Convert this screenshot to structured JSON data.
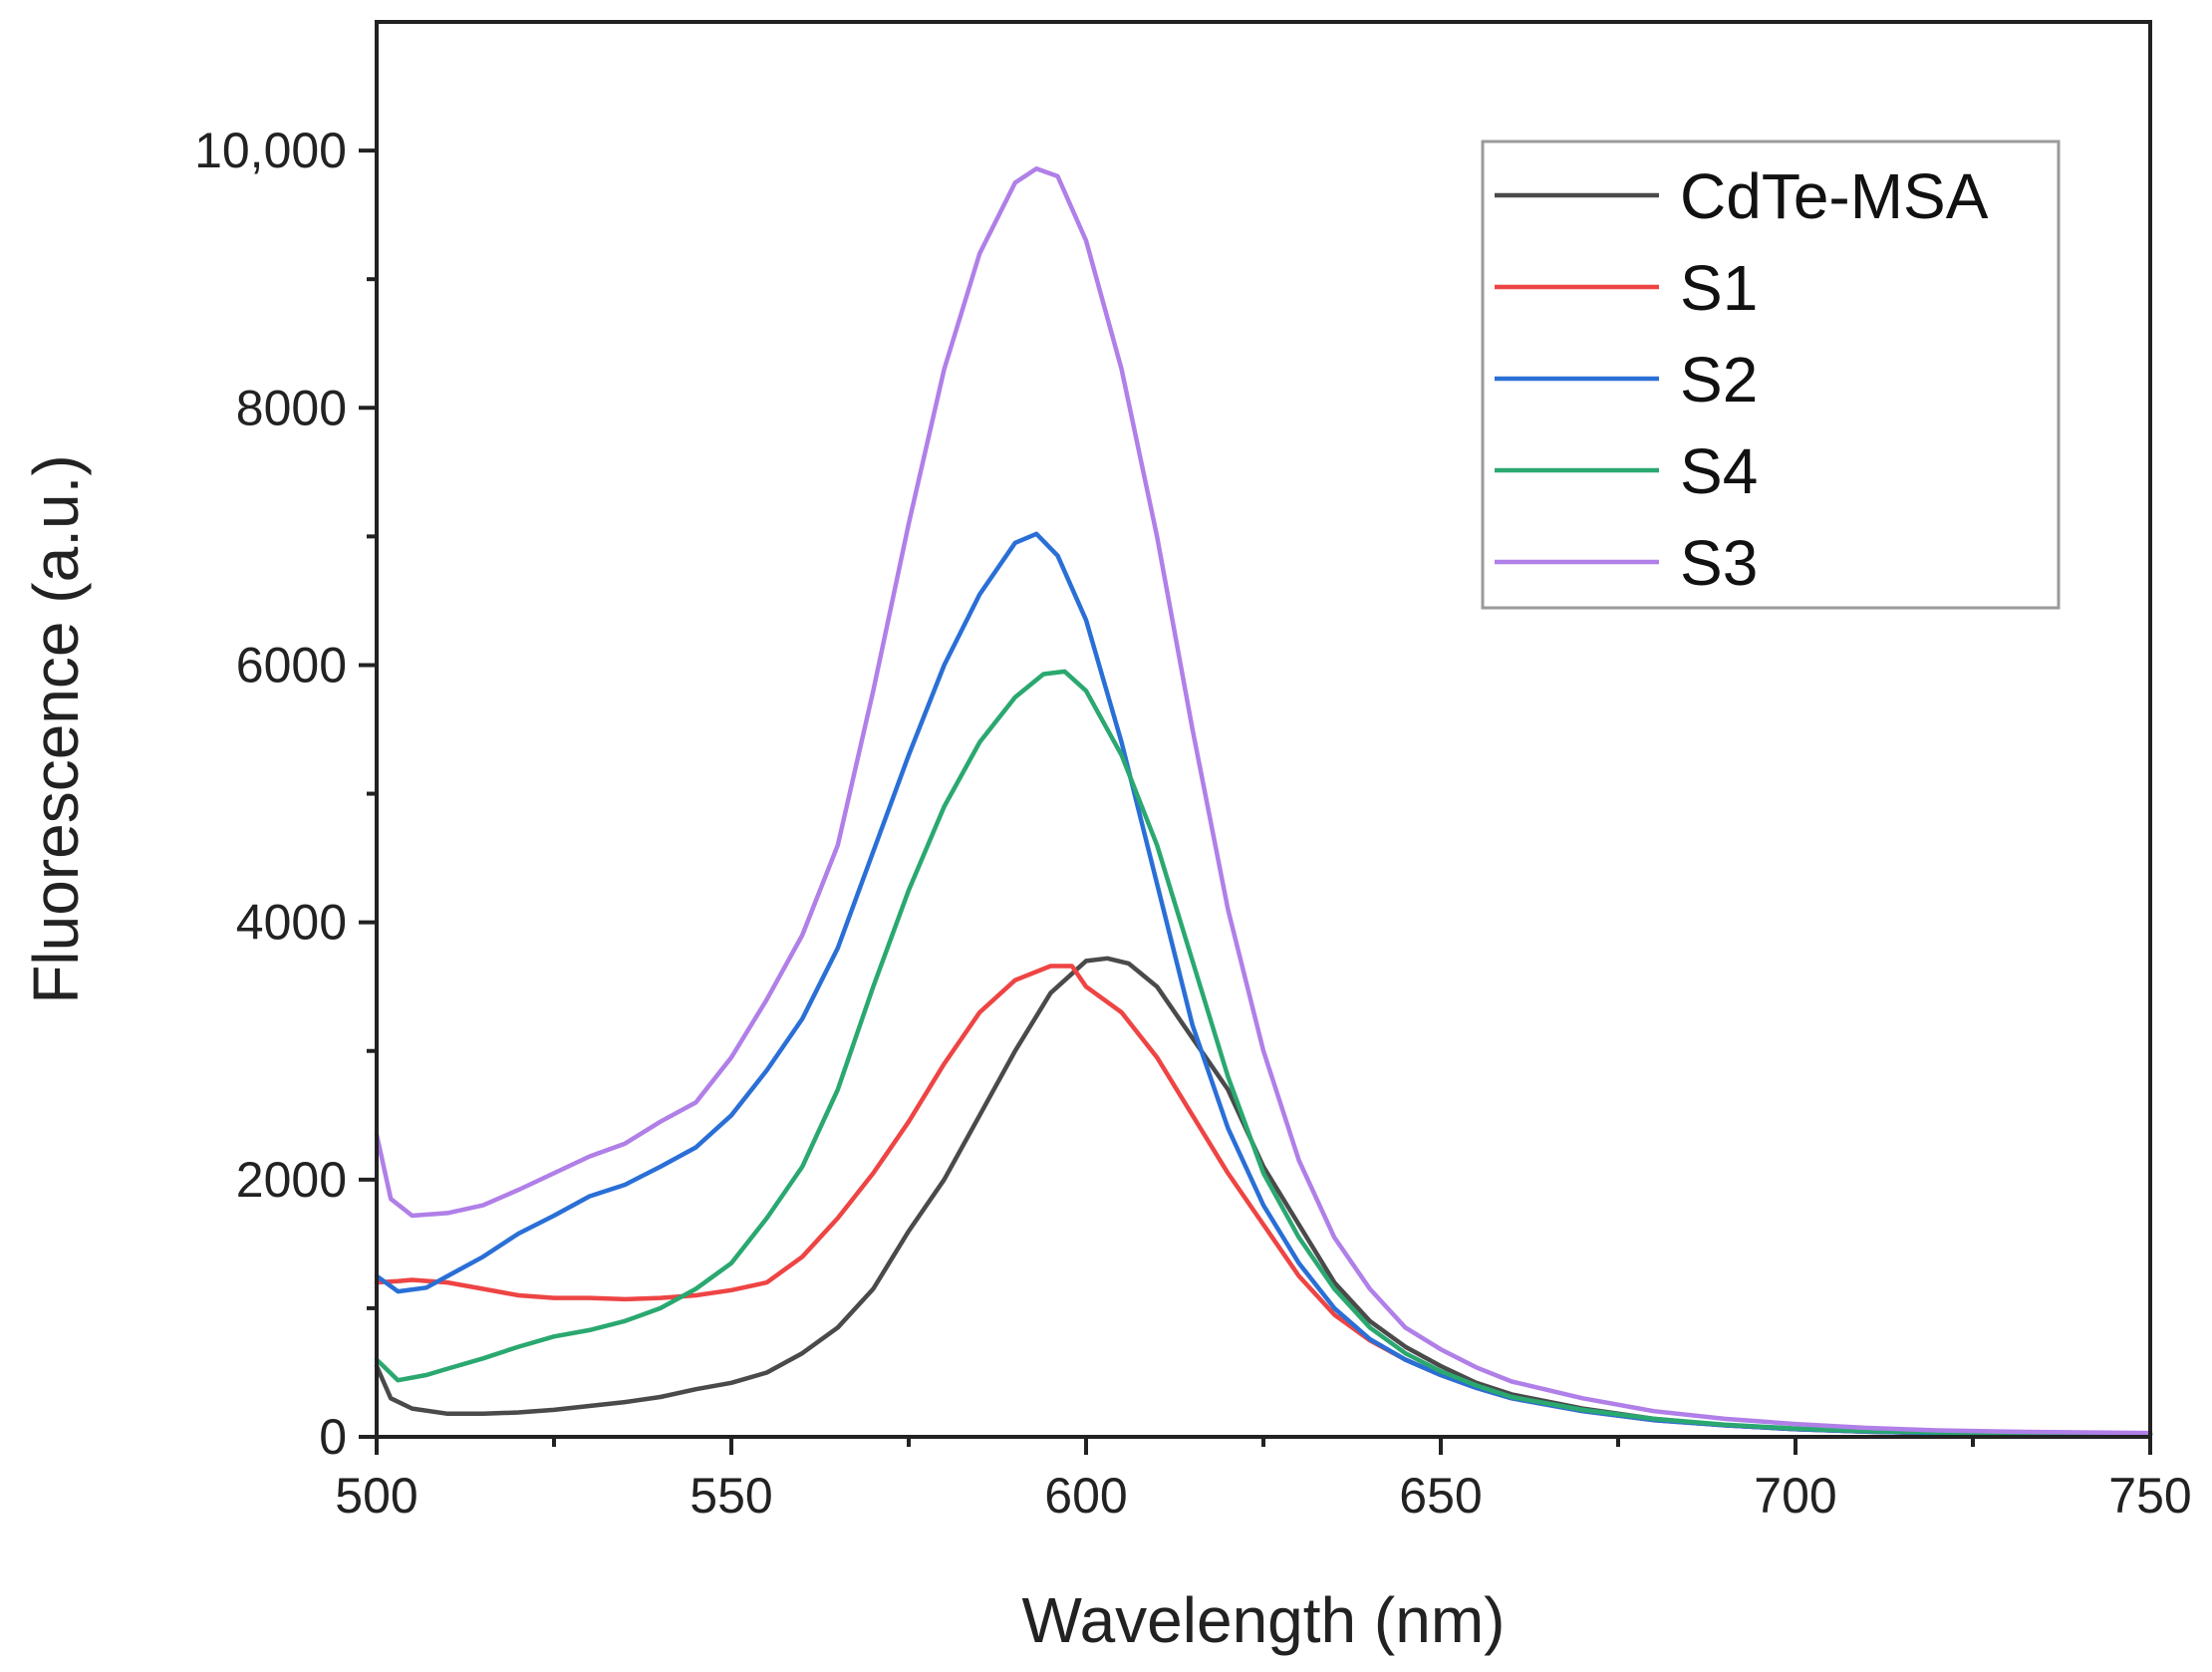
{
  "chart_data": {
    "type": "line",
    "title": "",
    "xlabel": "Wavelength (nm)",
    "ylabel": "Fluorescence (a.u.)",
    "xlim": [
      500,
      750
    ],
    "ylim": [
      0,
      11000
    ],
    "x_ticks": [
      500,
      550,
      600,
      650,
      700,
      750
    ],
    "x_tick_labels": [
      "500",
      "550",
      "600",
      "650",
      "700",
      "750"
    ],
    "y_ticks": [
      0,
      2000,
      4000,
      6000,
      8000,
      10000
    ],
    "y_tick_labels": [
      "0",
      "2000",
      "4000",
      "6000",
      "8000",
      "10,000"
    ],
    "grid": false,
    "legend_position": "top-right",
    "series": [
      {
        "name": "CdTe-MSA",
        "color": "#4a4a4a",
        "x": [
          500,
          502,
          505,
          510,
          515,
          520,
          525,
          530,
          535,
          540,
          545,
          550,
          555,
          560,
          565,
          570,
          575,
          580,
          585,
          590,
          595,
          600,
          603,
          606,
          610,
          615,
          620,
          625,
          630,
          635,
          640,
          645,
          650,
          655,
          660,
          670,
          680,
          690,
          700,
          710,
          720,
          730,
          740,
          750
        ],
        "y": [
          550,
          300,
          220,
          180,
          180,
          190,
          210,
          240,
          270,
          310,
          370,
          420,
          500,
          650,
          850,
          1150,
          1600,
          2000,
          2500,
          3000,
          3450,
          3700,
          3720,
          3680,
          3500,
          3100,
          2700,
          2100,
          1650,
          1200,
          900,
          700,
          550,
          420,
          330,
          220,
          140,
          90,
          60,
          40,
          30,
          25,
          20,
          20
        ]
      },
      {
        "name": "S1",
        "color": "#ee4444",
        "x": [
          500,
          503,
          505,
          510,
          515,
          520,
          525,
          530,
          535,
          540,
          545,
          550,
          555,
          560,
          565,
          570,
          575,
          580,
          585,
          590,
          595,
          598,
          600,
          605,
          610,
          615,
          620,
          625,
          630,
          635,
          640,
          645,
          650,
          655,
          660,
          670,
          680,
          690,
          700,
          710,
          720,
          730,
          740,
          750
        ],
        "y": [
          1200,
          1210,
          1220,
          1200,
          1150,
          1100,
          1080,
          1080,
          1070,
          1080,
          1100,
          1140,
          1200,
          1400,
          1700,
          2050,
          2450,
          2900,
          3300,
          3550,
          3660,
          3660,
          3500,
          3300,
          2950,
          2500,
          2050,
          1650,
          1250,
          950,
          750,
          600,
          480,
          380,
          300,
          200,
          130,
          90,
          60,
          40,
          30,
          25,
          20,
          20
        ]
      },
      {
        "name": "S2",
        "color": "#2a6fd6",
        "x": [
          500,
          503,
          507,
          510,
          515,
          520,
          525,
          530,
          535,
          540,
          545,
          550,
          555,
          560,
          565,
          570,
          575,
          580,
          585,
          590,
          593,
          596,
          600,
          605,
          610,
          615,
          620,
          625,
          630,
          635,
          640,
          645,
          650,
          655,
          660,
          670,
          680,
          690,
          700,
          710,
          720,
          730,
          740,
          750
        ],
        "y": [
          1250,
          1130,
          1160,
          1250,
          1400,
          1580,
          1720,
          1870,
          1960,
          2100,
          2250,
          2500,
          2850,
          3250,
          3800,
          4550,
          5300,
          6000,
          6550,
          6950,
          7020,
          6850,
          6350,
          5400,
          4300,
          3200,
          2400,
          1800,
          1350,
          1000,
          760,
          600,
          480,
          380,
          300,
          200,
          130,
          90,
          60,
          40,
          30,
          25,
          20,
          20
        ]
      },
      {
        "name": "S4",
        "color": "#2aa870",
        "x": [
          500,
          503,
          507,
          510,
          515,
          520,
          525,
          530,
          535,
          540,
          545,
          550,
          555,
          560,
          565,
          570,
          575,
          580,
          585,
          590,
          594,
          597,
          600,
          605,
          610,
          615,
          620,
          625,
          630,
          635,
          640,
          645,
          650,
          655,
          660,
          670,
          680,
          690,
          700,
          710,
          720,
          730,
          740,
          750
        ],
        "y": [
          600,
          440,
          480,
          530,
          610,
          700,
          780,
          830,
          900,
          1000,
          1150,
          1350,
          1700,
          2100,
          2700,
          3500,
          4250,
          4900,
          5400,
          5750,
          5930,
          5950,
          5800,
          5300,
          4600,
          3700,
          2800,
          2050,
          1550,
          1150,
          850,
          650,
          510,
          400,
          310,
          210,
          140,
          95,
          65,
          45,
          35,
          25,
          20,
          20
        ]
      },
      {
        "name": "S3",
        "color": "#b07fe8",
        "x": [
          500,
          502,
          505,
          510,
          515,
          520,
          525,
          530,
          535,
          540,
          545,
          550,
          555,
          560,
          565,
          570,
          575,
          580,
          585,
          590,
          593,
          596,
          600,
          605,
          610,
          615,
          620,
          625,
          630,
          635,
          640,
          645,
          650,
          655,
          660,
          670,
          680,
          690,
          700,
          710,
          720,
          730,
          740,
          750
        ],
        "y": [
          2350,
          1850,
          1720,
          1740,
          1800,
          1920,
          2050,
          2180,
          2280,
          2450,
          2600,
          2950,
          3400,
          3900,
          4600,
          5800,
          7100,
          8300,
          9200,
          9750,
          9860,
          9800,
          9300,
          8300,
          7000,
          5500,
          4100,
          3000,
          2150,
          1550,
          1150,
          850,
          680,
          540,
          430,
          300,
          200,
          140,
          100,
          70,
          50,
          40,
          35,
          30
        ]
      }
    ]
  }
}
